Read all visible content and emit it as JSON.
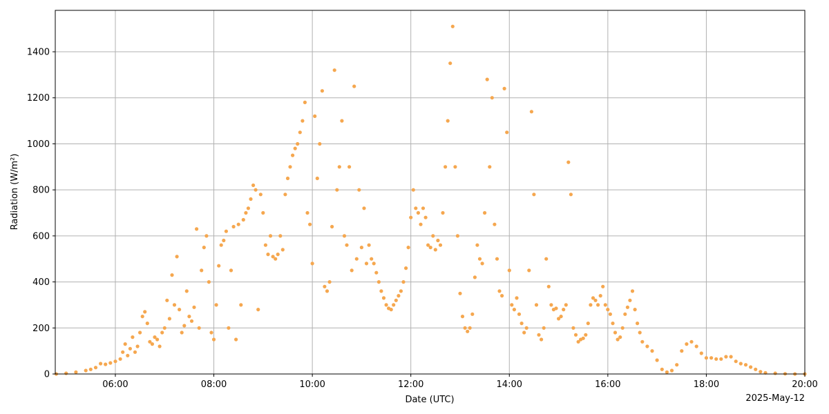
{
  "chart_data": {
    "type": "scatter",
    "title": "",
    "xlabel": "Date (UTC)",
    "ylabel": "Radiation (W/m²)",
    "date_label": "2025-May-12",
    "x_unit": "hour_utc",
    "xlim": [
      4.78,
      20.0
    ],
    "ylim": [
      0,
      1580
    ],
    "x_ticks": [
      {
        "value": 6,
        "label": "06:00"
      },
      {
        "value": 8,
        "label": "08:00"
      },
      {
        "value": 10,
        "label": "10:00"
      },
      {
        "value": 12,
        "label": "12:00"
      },
      {
        "value": 14,
        "label": "14:00"
      },
      {
        "value": 16,
        "label": "16:00"
      },
      {
        "value": 18,
        "label": "18:00"
      },
      {
        "value": 20,
        "label": "20:00"
      }
    ],
    "y_ticks": [
      {
        "value": 0,
        "label": "0"
      },
      {
        "value": 200,
        "label": "200"
      },
      {
        "value": 400,
        "label": "400"
      },
      {
        "value": 600,
        "label": "600"
      },
      {
        "value": 800,
        "label": "800"
      },
      {
        "value": 1000,
        "label": "1000"
      },
      {
        "value": 1200,
        "label": "1200"
      },
      {
        "value": 1400,
        "label": "1400"
      }
    ],
    "grid": true,
    "marker_color": "#f5a74f",
    "grid_color": "#b0b0b0",
    "series": [
      {
        "name": "",
        "points": [
          [
            4.8,
            0
          ],
          [
            5.0,
            3
          ],
          [
            5.2,
            8
          ],
          [
            5.4,
            15
          ],
          [
            5.5,
            20
          ],
          [
            5.6,
            28
          ],
          [
            5.7,
            45
          ],
          [
            5.8,
            42
          ],
          [
            5.9,
            48
          ],
          [
            6.0,
            55
          ],
          [
            6.1,
            65
          ],
          [
            6.15,
            95
          ],
          [
            6.2,
            130
          ],
          [
            6.25,
            80
          ],
          [
            6.3,
            110
          ],
          [
            6.35,
            160
          ],
          [
            6.4,
            95
          ],
          [
            6.45,
            120
          ],
          [
            6.5,
            180
          ],
          [
            6.55,
            250
          ],
          [
            6.6,
            270
          ],
          [
            6.65,
            220
          ],
          [
            6.7,
            140
          ],
          [
            6.75,
            130
          ],
          [
            6.8,
            160
          ],
          [
            6.85,
            150
          ],
          [
            6.9,
            120
          ],
          [
            6.95,
            180
          ],
          [
            7.0,
            200
          ],
          [
            7.05,
            320
          ],
          [
            7.1,
            240
          ],
          [
            7.15,
            430
          ],
          [
            7.2,
            300
          ],
          [
            7.25,
            510
          ],
          [
            7.3,
            280
          ],
          [
            7.35,
            180
          ],
          [
            7.4,
            210
          ],
          [
            7.45,
            360
          ],
          [
            7.5,
            250
          ],
          [
            7.55,
            230
          ],
          [
            7.6,
            290
          ],
          [
            7.65,
            630
          ],
          [
            7.7,
            200
          ],
          [
            7.75,
            450
          ],
          [
            7.8,
            550
          ],
          [
            7.85,
            600
          ],
          [
            7.9,
            400
          ],
          [
            7.95,
            180
          ],
          [
            8.0,
            150
          ],
          [
            8.05,
            300
          ],
          [
            8.1,
            470
          ],
          [
            8.15,
            560
          ],
          [
            8.2,
            580
          ],
          [
            8.25,
            620
          ],
          [
            8.3,
            200
          ],
          [
            8.35,
            450
          ],
          [
            8.4,
            640
          ],
          [
            8.45,
            150
          ],
          [
            8.5,
            650
          ],
          [
            8.55,
            300
          ],
          [
            8.6,
            670
          ],
          [
            8.65,
            700
          ],
          [
            8.7,
            720
          ],
          [
            8.75,
            760
          ],
          [
            8.8,
            820
          ],
          [
            8.85,
            800
          ],
          [
            8.9,
            280
          ],
          [
            8.95,
            780
          ],
          [
            9.0,
            700
          ],
          [
            9.05,
            560
          ],
          [
            9.1,
            520
          ],
          [
            9.15,
            600
          ],
          [
            9.2,
            510
          ],
          [
            9.25,
            500
          ],
          [
            9.3,
            520
          ],
          [
            9.35,
            600
          ],
          [
            9.4,
            540
          ],
          [
            9.45,
            780
          ],
          [
            9.5,
            850
          ],
          [
            9.55,
            900
          ],
          [
            9.6,
            950
          ],
          [
            9.65,
            980
          ],
          [
            9.7,
            1000
          ],
          [
            9.75,
            1050
          ],
          [
            9.8,
            1100
          ],
          [
            9.85,
            1180
          ],
          [
            9.9,
            700
          ],
          [
            9.95,
            650
          ],
          [
            10.0,
            480
          ],
          [
            10.05,
            1120
          ],
          [
            10.1,
            850
          ],
          [
            10.15,
            1000
          ],
          [
            10.2,
            1230
          ],
          [
            10.25,
            380
          ],
          [
            10.3,
            360
          ],
          [
            10.35,
            400
          ],
          [
            10.4,
            640
          ],
          [
            10.45,
            1320
          ],
          [
            10.5,
            800
          ],
          [
            10.55,
            900
          ],
          [
            10.6,
            1100
          ],
          [
            10.65,
            600
          ],
          [
            10.7,
            560
          ],
          [
            10.75,
            900
          ],
          [
            10.8,
            450
          ],
          [
            10.85,
            1250
          ],
          [
            10.9,
            500
          ],
          [
            10.95,
            800
          ],
          [
            11.0,
            550
          ],
          [
            11.05,
            720
          ],
          [
            11.1,
            480
          ],
          [
            11.15,
            560
          ],
          [
            11.2,
            500
          ],
          [
            11.25,
            480
          ],
          [
            11.3,
            440
          ],
          [
            11.35,
            400
          ],
          [
            11.4,
            360
          ],
          [
            11.45,
            330
          ],
          [
            11.5,
            300
          ],
          [
            11.55,
            285
          ],
          [
            11.6,
            280
          ],
          [
            11.65,
            300
          ],
          [
            11.7,
            320
          ],
          [
            11.75,
            340
          ],
          [
            11.8,
            360
          ],
          [
            11.85,
            400
          ],
          [
            11.9,
            460
          ],
          [
            11.95,
            550
          ],
          [
            12.0,
            680
          ],
          [
            12.05,
            800
          ],
          [
            12.1,
            720
          ],
          [
            12.15,
            700
          ],
          [
            12.2,
            650
          ],
          [
            12.25,
            720
          ],
          [
            12.3,
            680
          ],
          [
            12.35,
            560
          ],
          [
            12.4,
            550
          ],
          [
            12.45,
            600
          ],
          [
            12.5,
            540
          ],
          [
            12.55,
            580
          ],
          [
            12.6,
            560
          ],
          [
            12.65,
            700
          ],
          [
            12.7,
            900
          ],
          [
            12.75,
            1100
          ],
          [
            12.8,
            1350
          ],
          [
            12.85,
            1510
          ],
          [
            12.9,
            900
          ],
          [
            12.95,
            600
          ],
          [
            13.0,
            350
          ],
          [
            13.05,
            250
          ],
          [
            13.1,
            200
          ],
          [
            13.15,
            185
          ],
          [
            13.2,
            200
          ],
          [
            13.25,
            260
          ],
          [
            13.3,
            420
          ],
          [
            13.35,
            560
          ],
          [
            13.4,
            500
          ],
          [
            13.45,
            480
          ],
          [
            13.5,
            700
          ],
          [
            13.55,
            1280
          ],
          [
            13.6,
            900
          ],
          [
            13.65,
            1200
          ],
          [
            13.7,
            650
          ],
          [
            13.75,
            500
          ],
          [
            13.8,
            360
          ],
          [
            13.85,
            340
          ],
          [
            13.9,
            1240
          ],
          [
            13.95,
            1050
          ],
          [
            14.0,
            450
          ],
          [
            14.05,
            300
          ],
          [
            14.1,
            280
          ],
          [
            14.15,
            330
          ],
          [
            14.2,
            260
          ],
          [
            14.25,
            220
          ],
          [
            14.3,
            180
          ],
          [
            14.35,
            200
          ],
          [
            14.4,
            450
          ],
          [
            14.45,
            1140
          ],
          [
            14.5,
            780
          ],
          [
            14.55,
            300
          ],
          [
            14.6,
            170
          ],
          [
            14.65,
            150
          ],
          [
            14.7,
            200
          ],
          [
            14.75,
            500
          ],
          [
            14.8,
            380
          ],
          [
            14.85,
            300
          ],
          [
            14.9,
            280
          ],
          [
            14.95,
            285
          ],
          [
            15.0,
            240
          ],
          [
            15.05,
            250
          ],
          [
            15.1,
            280
          ],
          [
            15.15,
            300
          ],
          [
            15.2,
            920
          ],
          [
            15.25,
            780
          ],
          [
            15.3,
            200
          ],
          [
            15.35,
            170
          ],
          [
            15.4,
            140
          ],
          [
            15.45,
            150
          ],
          [
            15.5,
            155
          ],
          [
            15.55,
            170
          ],
          [
            15.6,
            220
          ],
          [
            15.65,
            300
          ],
          [
            15.7,
            330
          ],
          [
            15.75,
            320
          ],
          [
            15.8,
            300
          ],
          [
            15.85,
            340
          ],
          [
            15.9,
            380
          ],
          [
            15.95,
            300
          ],
          [
            16.0,
            280
          ],
          [
            16.05,
            260
          ],
          [
            16.1,
            220
          ],
          [
            16.15,
            180
          ],
          [
            16.2,
            150
          ],
          [
            16.25,
            160
          ],
          [
            16.3,
            200
          ],
          [
            16.35,
            260
          ],
          [
            16.4,
            290
          ],
          [
            16.45,
            320
          ],
          [
            16.5,
            360
          ],
          [
            16.55,
            280
          ],
          [
            16.6,
            220
          ],
          [
            16.65,
            180
          ],
          [
            16.7,
            140
          ],
          [
            16.8,
            120
          ],
          [
            16.9,
            100
          ],
          [
            17.0,
            60
          ],
          [
            17.1,
            20
          ],
          [
            17.2,
            8
          ],
          [
            17.3,
            15
          ],
          [
            17.4,
            40
          ],
          [
            17.5,
            100
          ],
          [
            17.6,
            130
          ],
          [
            17.7,
            140
          ],
          [
            17.8,
            120
          ],
          [
            17.9,
            90
          ],
          [
            18.0,
            70
          ],
          [
            18.1,
            70
          ],
          [
            18.2,
            65
          ],
          [
            18.3,
            65
          ],
          [
            18.4,
            75
          ],
          [
            18.5,
            75
          ],
          [
            18.6,
            55
          ],
          [
            18.7,
            45
          ],
          [
            18.8,
            40
          ],
          [
            18.9,
            30
          ],
          [
            19.0,
            20
          ],
          [
            19.1,
            10
          ],
          [
            19.2,
            5
          ],
          [
            19.4,
            3
          ],
          [
            19.6,
            1
          ],
          [
            19.8,
            0
          ],
          [
            20.0,
            0
          ]
        ]
      }
    ]
  }
}
